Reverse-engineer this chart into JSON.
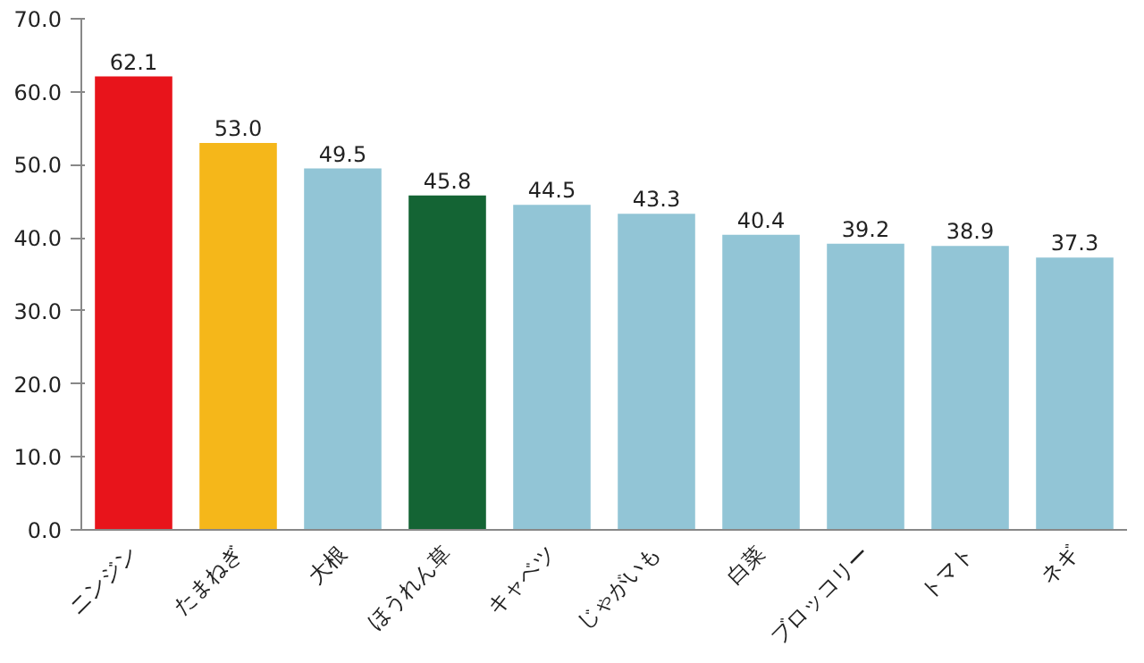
{
  "chart_data": {
    "type": "bar",
    "categories": [
      "ニンジン",
      "たまねぎ",
      "大根",
      "ほうれん草",
      "キャベツ",
      "じゃがいも",
      "白菜",
      "ブロッコリー",
      "トマト",
      "ネギ"
    ],
    "values": [
      62.1,
      53.0,
      49.5,
      45.8,
      44.5,
      43.3,
      40.4,
      39.2,
      38.9,
      37.3
    ],
    "colors": [
      "#e8141b",
      "#f5b71a",
      "#92c5d6",
      "#146434",
      "#92c5d6",
      "#92c5d6",
      "#92c5d6",
      "#92c5d6",
      "#92c5d6",
      "#92c5d6"
    ],
    "ylim": [
      0,
      70
    ],
    "yticks": [
      {
        "value": 0,
        "label": "0.0"
      },
      {
        "value": 10,
        "label": "10.0"
      },
      {
        "value": 20,
        "label": "20.0"
      },
      {
        "value": 30,
        "label": "30.0"
      },
      {
        "value": 40,
        "label": "40.0"
      },
      {
        "value": 50,
        "label": "50.0"
      },
      {
        "value": 60,
        "label": "60.0"
      },
      {
        "value": 70,
        "label": "70.0"
      }
    ],
    "value_labels": [
      "62.1",
      "53.0",
      "49.5",
      "45.8",
      "44.5",
      "43.3",
      "40.4",
      "39.2",
      "38.9",
      "37.3"
    ],
    "grid": false
  }
}
